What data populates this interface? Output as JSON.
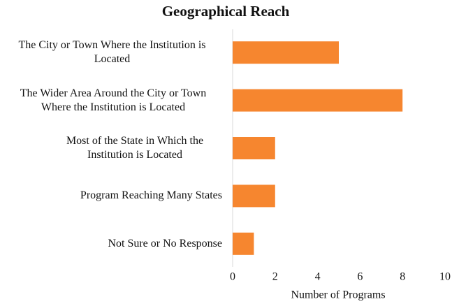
{
  "chart_data": {
    "type": "bar",
    "orientation": "horizontal",
    "title": "Geographical Reach",
    "categories": [
      "The City or Town Where the Institution is Located",
      "The Wider Area Around the City or Town Where the Institution is Located",
      "Most of the State in Which the Institution is Located",
      "Program Reaching Many States",
      "Not Sure or No Response"
    ],
    "values": [
      5,
      8,
      2,
      2,
      1
    ],
    "color": "#f6862f",
    "xlabel": "Number of Programs",
    "xlim": [
      0,
      10
    ],
    "xticks": [
      0,
      2,
      4,
      6,
      8,
      10
    ],
    "grid": false
  }
}
